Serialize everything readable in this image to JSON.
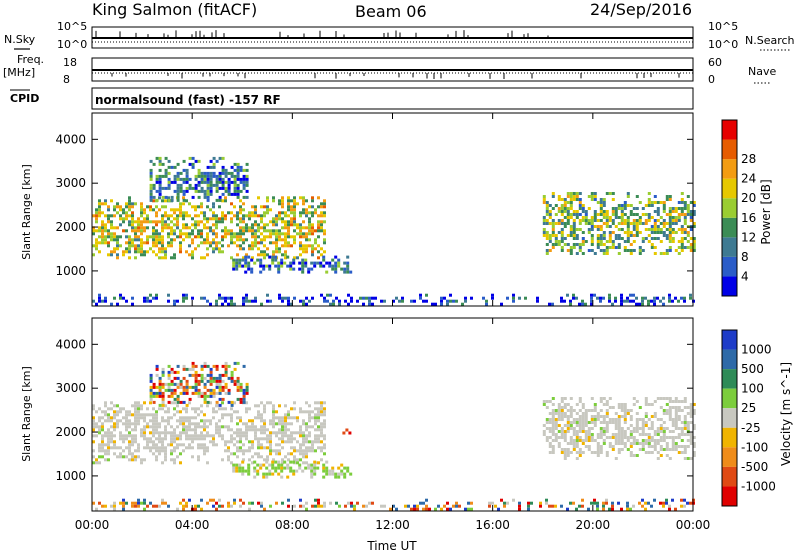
{
  "header": {
    "station": "King Salmon (fitACF)",
    "beam": "Beam 06",
    "date": "24/Sep/2016"
  },
  "summary": {
    "nsky_label": "N.Sky",
    "nsearch_label": "N.Search",
    "ns_top_tick": "10^5",
    "ns_bottom_tick": "10^0",
    "freq_label_1": "Freq.",
    "freq_label_2": "[MHz]",
    "freq_top_tick": "18",
    "freq_bottom_tick": "8",
    "nave_label": "Nave",
    "nave_top_tick": "60",
    "nave_bottom_tick": "0",
    "cpid_label": "CPID",
    "cpid_text": "normalsound (fast) -157 RF"
  },
  "chart_data": [
    {
      "type": "heatmap",
      "name": "power",
      "ylabel": "Slant Range [km]",
      "xlabel": "",
      "ylim": [
        200,
        4600
      ],
      "yticks": [
        "1000",
        "2000",
        "3000",
        "4000"
      ],
      "xticks": [
        "00:00",
        "04:00",
        "08:00",
        "12:00",
        "16:00",
        "20:00",
        "00:00"
      ],
      "colorbar": {
        "label": "Power [dB]",
        "ticks": [
          "4",
          "8",
          "12",
          "16",
          "20",
          "24",
          "28"
        ],
        "colors": [
          "#0000e6",
          "#2a5cc8",
          "#3e7a92",
          "#3b8c55",
          "#9acd32",
          "#e6c800",
          "#f39c12",
          "#e65c00",
          "#e60000"
        ]
      },
      "regions": [
        {
          "t0": 0.0,
          "t1": 9.3,
          "r0": 1300,
          "r1": 2700,
          "level": 0.55
        },
        {
          "t0": 2.3,
          "t1": 6.2,
          "r0": 2600,
          "r1": 3600,
          "level": 0.25
        },
        {
          "t0": 5.6,
          "t1": 10.3,
          "r0": 1000,
          "r1": 1350,
          "level": 0.25
        },
        {
          "t0": 18.0,
          "t1": 24.0,
          "r0": 1400,
          "r1": 2800,
          "level": 0.45
        },
        {
          "t0": 0.0,
          "t1": 24.0,
          "r0": 250,
          "r1": 480,
          "level": 0.15
        }
      ]
    },
    {
      "type": "heatmap",
      "name": "velocity",
      "ylabel": "Slant Range [km]",
      "xlabel": "Time UT",
      "ylim": [
        200,
        4600
      ],
      "yticks": [
        "1000",
        "2000",
        "3000",
        "4000"
      ],
      "xticks": [
        "00:00",
        "04:00",
        "08:00",
        "12:00",
        "16:00",
        "20:00",
        "00:00"
      ],
      "colorbar": {
        "label": "Velocity [m s^-1]",
        "ticks": [
          "1000",
          "500",
          "100",
          "25",
          "-25",
          "-100",
          "-500",
          "-1000"
        ],
        "colors": [
          "#1e3cc8",
          "#2e6aa8",
          "#2e8b57",
          "#7ccd3c",
          "#c8c8c0",
          "#f0b400",
          "#ef8c1a",
          "#e04a14",
          "#e00000"
        ]
      },
      "regions": [
        {
          "t0": 0.0,
          "t1": 9.3,
          "r0": 1300,
          "r1": 2700,
          "level": "ground"
        },
        {
          "t0": 2.3,
          "t1": 6.2,
          "r0": 2600,
          "r1": 3600,
          "level": "mixed"
        },
        {
          "t0": 5.6,
          "t1": 10.3,
          "r0": 1000,
          "r1": 1350,
          "level": "positive"
        },
        {
          "t0": 18.0,
          "t1": 24.0,
          "r0": 1400,
          "r1": 2800,
          "level": "ground"
        },
        {
          "t0": 10.0,
          "t1": 10.3,
          "r0": 1950,
          "r1": 2150,
          "level": "negative"
        },
        {
          "t0": 0.0,
          "t1": 24.0,
          "r0": 250,
          "r1": 480,
          "level": "mixed"
        }
      ]
    }
  ]
}
